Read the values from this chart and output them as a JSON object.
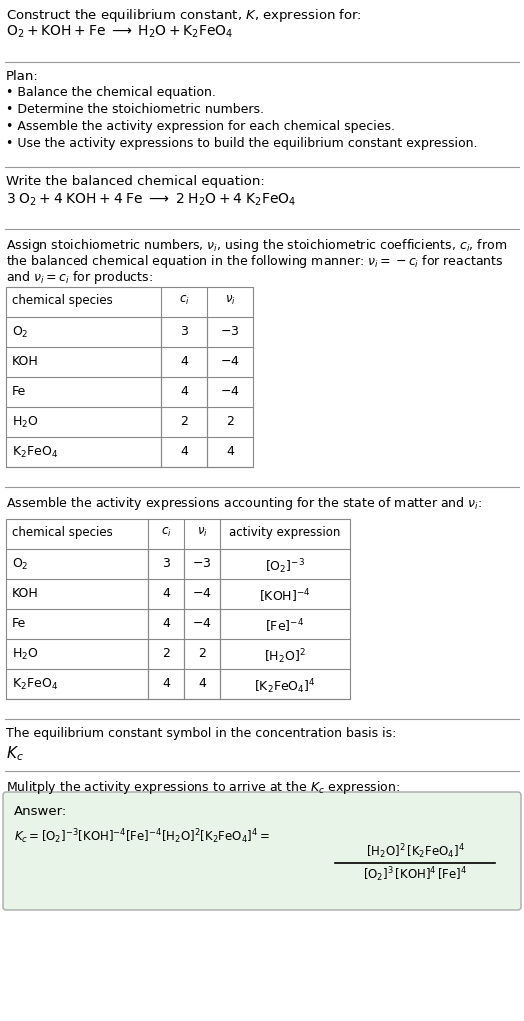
{
  "title_line1": "Construct the equilibrium constant, $K$, expression for:",
  "title_line2": "$\\mathrm{O_2 + KOH + Fe \\;\\longrightarrow\\; H_2O + K_2FeO_4}$",
  "plan_header": "Plan:",
  "plan_items": [
    "• Balance the chemical equation.",
    "• Determine the stoichiometric numbers.",
    "• Assemble the activity expression for each chemical species.",
    "• Use the activity expressions to build the equilibrium constant expression."
  ],
  "balanced_header": "Write the balanced chemical equation:",
  "balanced_eq": "$\\mathrm{3\\;O_2 + 4\\;KOH + 4\\;Fe \\;\\longrightarrow\\; 2\\;H_2O + 4\\;K_2FeO_4}$",
  "stoich_header_parts": [
    "Assign stoichiometric numbers, $\\nu_i$, using the stoichiometric coefficients, $c_i$, from",
    "the balanced chemical equation in the following manner: $\\nu_i = -c_i$ for reactants",
    "and $\\nu_i = c_i$ for products:"
  ],
  "table1_cols": [
    "chemical species",
    "$c_i$",
    "$\\nu_i$"
  ],
  "table1_rows": [
    [
      "$\\mathrm{O_2}$",
      "3",
      "$-3$"
    ],
    [
      "KOH",
      "4",
      "$-4$"
    ],
    [
      "Fe",
      "4",
      "$-4$"
    ],
    [
      "$\\mathrm{H_2O}$",
      "2",
      "2"
    ],
    [
      "$\\mathrm{K_2FeO_4}$",
      "4",
      "4"
    ]
  ],
  "activity_header": "Assemble the activity expressions accounting for the state of matter and $\\nu_i$:",
  "table2_cols": [
    "chemical species",
    "$c_i$",
    "$\\nu_i$",
    "activity expression"
  ],
  "table2_rows": [
    [
      "$\\mathrm{O_2}$",
      "3",
      "$-3$",
      "$[\\mathrm{O_2}]^{-3}$"
    ],
    [
      "KOH",
      "4",
      "$-4$",
      "$[\\mathrm{KOH}]^{-4}$"
    ],
    [
      "Fe",
      "4",
      "$-4$",
      "$[\\mathrm{Fe}]^{-4}$"
    ],
    [
      "$\\mathrm{H_2O}$",
      "2",
      "2",
      "$[\\mathrm{H_2O}]^{2}$"
    ],
    [
      "$\\mathrm{K_2FeO_4}$",
      "4",
      "4",
      "$[\\mathrm{K_2FeO_4}]^{4}$"
    ]
  ],
  "kc_header": "The equilibrium constant symbol in the concentration basis is:",
  "kc_symbol": "$K_c$",
  "multiply_header": "Mulitply the activity expressions to arrive at the $K_c$ expression:",
  "answer_label": "Answer:",
  "bg_color": "#ffffff",
  "text_color": "#000000",
  "table_border_color": "#888888",
  "answer_box_color": "#e8f4e8",
  "line_color": "#999999"
}
